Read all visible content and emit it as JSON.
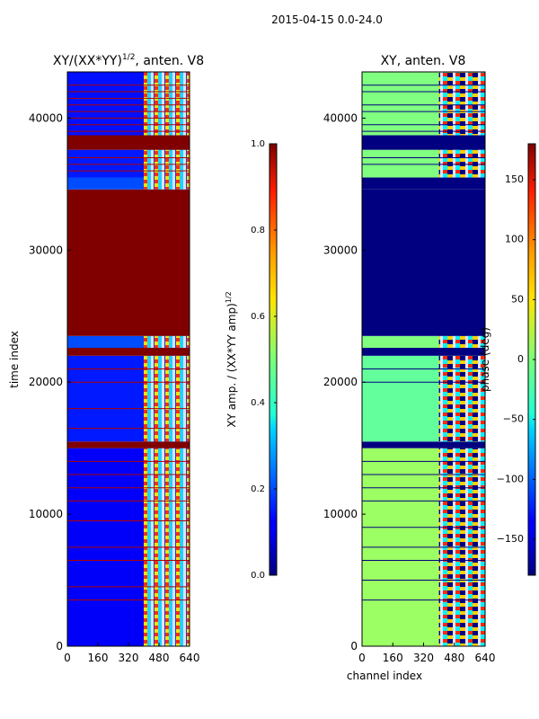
{
  "suptitle": "2015-04-15 0.0-24.0",
  "chart_data": [
    {
      "type": "heatmap",
      "title": "XY/(XX*YY)^1/2, anten. V8",
      "title_main": "XY/(XX*YY)",
      "title_sup": "1/2",
      "title_tail": ", anten. V8",
      "xlabel": "",
      "ylabel": "time index",
      "xlim": [
        0,
        640
      ],
      "ylim": [
        0,
        43500
      ],
      "xticks": [
        0,
        160,
        320,
        480,
        640
      ],
      "yticks": [
        0,
        10000,
        20000,
        30000,
        40000
      ],
      "colorbar": {
        "label": "XY amp. / (XX*YY amp)^1/2",
        "label_main": "XY amp. / (XX*YY amp)",
        "label_sup": "1/2",
        "range": [
          0.0,
          1.0
        ],
        "ticks": [
          0.0,
          0.2,
          0.4,
          0.6,
          0.8,
          1.0
        ],
        "tick_labels": [
          "0.0",
          "0.2",
          "0.4",
          "0.6",
          "0.8",
          "1.0"
        ],
        "colormap": "jet"
      },
      "description_rows": [
        {
          "from": 0,
          "to": 15000,
          "value": 0.12
        },
        {
          "from": 15000,
          "to": 15500,
          "value": 1.0
        },
        {
          "from": 15500,
          "to": 22000,
          "value": 0.15
        },
        {
          "from": 22000,
          "to": 22600,
          "value": 1.0
        },
        {
          "from": 22600,
          "to": 23500,
          "value": 0.2
        },
        {
          "from": 23500,
          "to": 34600,
          "value": 1.0
        },
        {
          "from": 34600,
          "to": 35500,
          "value": 0.2
        },
        {
          "from": 35500,
          "to": 37600,
          "value": 0.15
        },
        {
          "from": 37600,
          "to": 38700,
          "value": 1.0
        },
        {
          "from": 38700,
          "to": 43500,
          "value": 0.14
        }
      ],
      "line_values": [
        3500,
        4500,
        6500,
        7500,
        9500,
        11000,
        12000,
        13000,
        14000,
        16500,
        18000,
        20000,
        21000,
        36000,
        36500,
        37000,
        39000,
        39500,
        40000,
        40500,
        41000,
        41500,
        42000,
        42500
      ],
      "high_band_channels": [
        400,
        640
      ]
    },
    {
      "type": "heatmap",
      "title": "XY, anten. V8",
      "xlabel": "channel index",
      "ylabel": "",
      "xlim": [
        0,
        640
      ],
      "ylim": [
        0,
        43500
      ],
      "xticks": [
        0,
        160,
        320,
        480,
        640
      ],
      "yticks": [
        0,
        10000,
        20000,
        30000,
        40000
      ],
      "colorbar": {
        "label": "phase (deg)",
        "range": [
          -180,
          180
        ],
        "ticks": [
          -150,
          -100,
          -50,
          0,
          50,
          100,
          150
        ],
        "tick_labels": [
          "−150",
          "−100",
          "−50",
          "0",
          "50",
          "100",
          "150"
        ],
        "colormap": "jet"
      },
      "description_rows": [
        {
          "from": 0,
          "to": 15000,
          "value": 10
        },
        {
          "from": 15000,
          "to": 15500,
          "value": -180
        },
        {
          "from": 15500,
          "to": 22000,
          "value": -10
        },
        {
          "from": 22000,
          "to": 22600,
          "value": -180
        },
        {
          "from": 22600,
          "to": 23500,
          "value": 0
        },
        {
          "from": 23500,
          "to": 34600,
          "value": -180
        },
        {
          "from": 34600,
          "to": 35500,
          "value": -180
        },
        {
          "from": 35500,
          "to": 37600,
          "value": 0
        },
        {
          "from": 37600,
          "to": 38700,
          "value": -180
        },
        {
          "from": 38700,
          "to": 43500,
          "value": 0
        }
      ],
      "line_values": [
        3500,
        5000,
        6500,
        7500,
        9000,
        11000,
        12000,
        13000,
        14000,
        20000,
        21000,
        36500,
        37000,
        39000,
        39500,
        40500,
        41000,
        42000,
        42500
      ],
      "high_band_channels": [
        400,
        640
      ]
    }
  ]
}
